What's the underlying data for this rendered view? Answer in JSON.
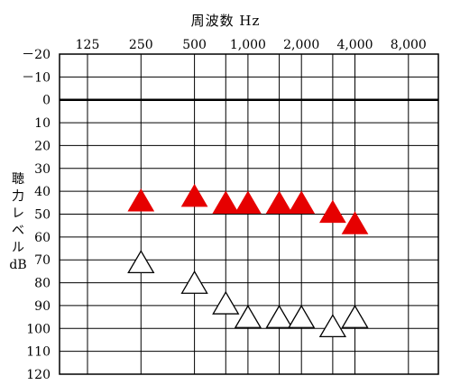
{
  "chart_data": {
    "type": "scatter",
    "title": "",
    "xlabel": "周波数 Hz",
    "ylabel": "聴力レベル dB",
    "x_scale": "log2",
    "x_ticks": [
      125,
      250,
      500,
      1000,
      2000,
      4000,
      8000
    ],
    "x_tick_labels": [
      "125",
      "250",
      "500",
      "1,000",
      "2,000",
      "4,000",
      "8,000"
    ],
    "x_intermediate_gridlines": [
      750,
      1500,
      3000
    ],
    "y_inverted": true,
    "ylim": [
      -20,
      120
    ],
    "y_ticks": [
      -20,
      -10,
      0,
      10,
      20,
      30,
      40,
      50,
      60,
      70,
      80,
      90,
      100,
      110,
      120
    ],
    "y_tick_labels": [
      "－20",
      "－10",
      "0",
      "10",
      "20",
      "30",
      "40",
      "50",
      "60",
      "70",
      "80",
      "90",
      "100",
      "110",
      "120"
    ],
    "grid": true,
    "series": [
      {
        "marker": "filled-triangle",
        "color": "#e60000",
        "points": [
          {
            "x": 250,
            "y": 45
          },
          {
            "x": 500,
            "y": 43
          },
          {
            "x": 750,
            "y": 46
          },
          {
            "x": 1000,
            "y": 46
          },
          {
            "x": 1500,
            "y": 46
          },
          {
            "x": 2000,
            "y": 46
          },
          {
            "x": 3000,
            "y": 50
          },
          {
            "x": 4000,
            "y": 55
          }
        ]
      },
      {
        "marker": "open-triangle",
        "color": "#000000",
        "points": [
          {
            "x": 250,
            "y": 72
          },
          {
            "x": 500,
            "y": 81
          },
          {
            "x": 750,
            "y": 90
          },
          {
            "x": 1000,
            "y": 96
          },
          {
            "x": 1500,
            "y": 96
          },
          {
            "x": 2000,
            "y": 96
          },
          {
            "x": 3000,
            "y": 100
          },
          {
            "x": 4000,
            "y": 96
          }
        ]
      }
    ]
  }
}
